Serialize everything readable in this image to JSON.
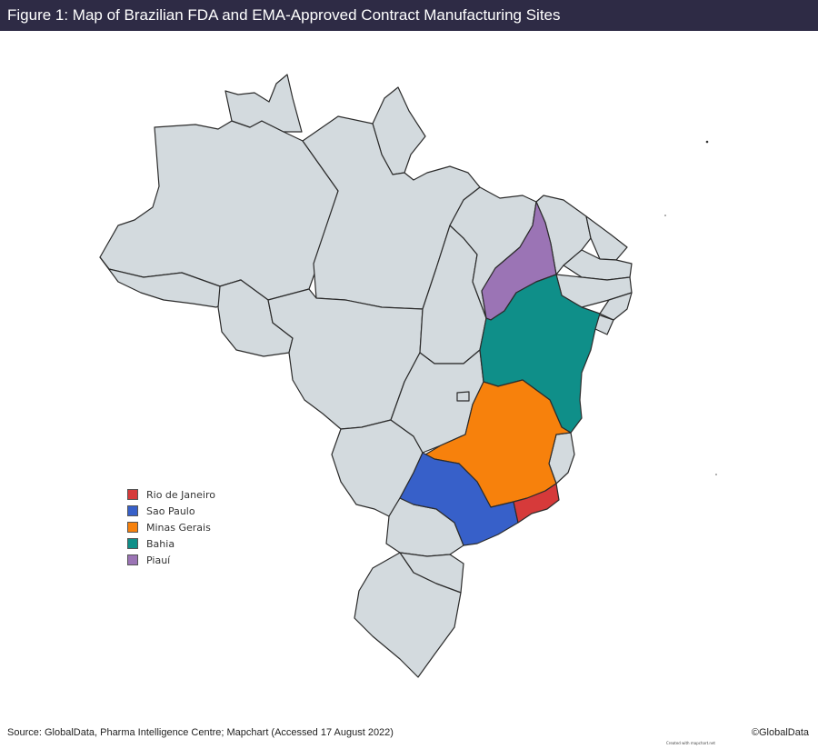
{
  "header": {
    "title": "Figure 1: Map of Brazilian FDA and EMA-Approved Contract Manufacturing Sites"
  },
  "map": {
    "default_fill": "#d3dade",
    "highlighted_states": [
      {
        "state": "Rio de Janeiro",
        "color": "#d63a3a"
      },
      {
        "state": "Sao Paulo",
        "color": "#3760c9"
      },
      {
        "state": "Minas Gerais",
        "color": "#f7810c"
      },
      {
        "state": "Bahia",
        "color": "#0f8f89"
      },
      {
        "state": "Piauí",
        "color": "#9b74b5"
      }
    ],
    "legend": [
      {
        "label": "Rio de Janeiro",
        "color": "#d63a3a"
      },
      {
        "label": "Sao Paulo",
        "color": "#3760c9"
      },
      {
        "label": "Minas Gerais",
        "color": "#f7810c"
      },
      {
        "label": "Bahia",
        "color": "#0f8f89"
      },
      {
        "label": "Piauí",
        "color": "#9b74b5"
      }
    ],
    "credit": "Created with mapchart.net"
  },
  "footer": {
    "source": "Source: GlobalData, Pharma Intelligence Centre; Mapchart (Accessed 17 August 2022)",
    "copyright": "©GlobalData"
  }
}
